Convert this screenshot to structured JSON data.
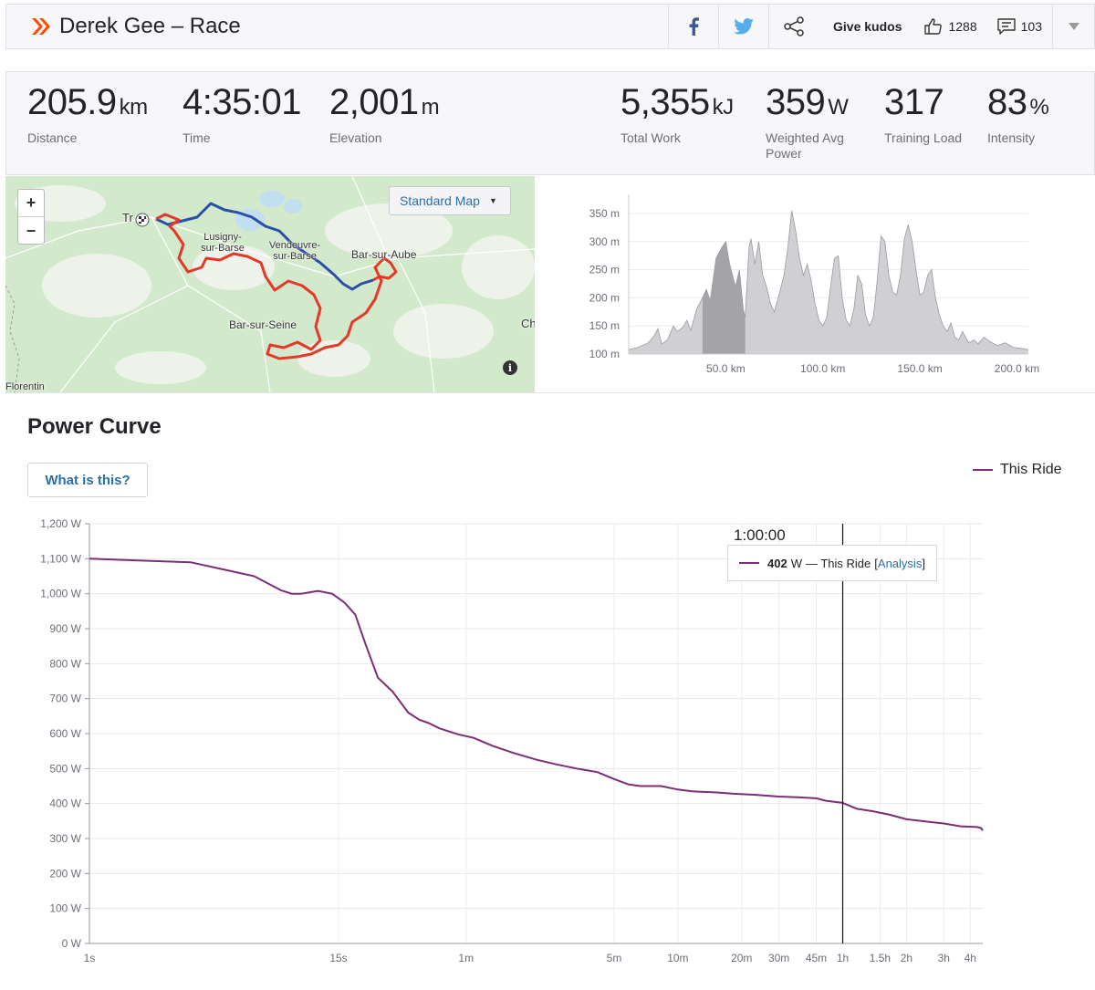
{
  "header": {
    "title": "Derek Gee – Race",
    "kudos_label": "Give kudos",
    "kudos_count": "1288",
    "comment_count": "103"
  },
  "stats": [
    {
      "value": "205.9",
      "unit": "km",
      "label": "Distance"
    },
    {
      "value": "4:35:01",
      "unit": "",
      "label": "Time"
    },
    {
      "value": "2,001",
      "unit": "m",
      "label": "Elevation"
    },
    {
      "value": "5,355",
      "unit": "kJ",
      "label": "Total Work"
    },
    {
      "value": "359",
      "unit": "W",
      "label": "Weighted Avg Power"
    },
    {
      "value": "317",
      "unit": "",
      "label": "Training Load"
    },
    {
      "value": "83",
      "unit": "%",
      "label": "Intensity"
    }
  ],
  "map": {
    "zoom_in": "+",
    "zoom_out": "−",
    "style_select": "Standard Map",
    "labels": [
      "Tr",
      "Lusigny-sur-Barse",
      "Vendeuvre-sur-Barse",
      "Bar-sur-Aube",
      "Bar-sur-Seine",
      "Ch",
      "Florentin"
    ],
    "info": "i"
  },
  "elevation_chart": {
    "type": "area",
    "y_ticks": [
      "350 m",
      "300 m",
      "250 m",
      "200 m",
      "150 m",
      "100 m"
    ],
    "x_ticks": [
      "50.0 km",
      "100.0 km",
      "150.0 km",
      "200.0 km"
    ],
    "ylim": [
      100,
      350
    ],
    "xlim": [
      0,
      205.9
    ],
    "highlight_range_km": [
      38,
      60
    ],
    "points": [
      [
        0,
        108
      ],
      [
        5,
        112
      ],
      [
        10,
        120
      ],
      [
        13,
        132
      ],
      [
        15,
        145
      ],
      [
        17,
        118
      ],
      [
        20,
        125
      ],
      [
        23,
        150
      ],
      [
        25,
        140
      ],
      [
        28,
        148
      ],
      [
        30,
        160
      ],
      [
        32,
        142
      ],
      [
        35,
        180
      ],
      [
        38,
        200
      ],
      [
        40,
        215
      ],
      [
        42,
        195
      ],
      [
        45,
        270
      ],
      [
        48,
        290
      ],
      [
        50,
        300
      ],
      [
        52,
        260
      ],
      [
        55,
        220
      ],
      [
        57,
        250
      ],
      [
        59,
        180
      ],
      [
        60,
        165
      ],
      [
        62,
        290
      ],
      [
        63,
        305
      ],
      [
        65,
        260
      ],
      [
        67,
        300
      ],
      [
        69,
        240
      ],
      [
        71,
        220
      ],
      [
        73,
        190
      ],
      [
        75,
        175
      ],
      [
        77,
        200
      ],
      [
        80,
        240
      ],
      [
        82,
        290
      ],
      [
        84,
        355
      ],
      [
        86,
        320
      ],
      [
        88,
        270
      ],
      [
        90,
        240
      ],
      [
        92,
        260
      ],
      [
        94,
        230
      ],
      [
        96,
        190
      ],
      [
        98,
        160
      ],
      [
        100,
        150
      ],
      [
        102,
        165
      ],
      [
        104,
        220
      ],
      [
        106,
        270
      ],
      [
        108,
        275
      ],
      [
        110,
        200
      ],
      [
        112,
        160
      ],
      [
        114,
        150
      ],
      [
        116,
        180
      ],
      [
        118,
        240
      ],
      [
        120,
        225
      ],
      [
        122,
        170
      ],
      [
        124,
        150
      ],
      [
        126,
        165
      ],
      [
        128,
        230
      ],
      [
        130,
        310
      ],
      [
        132,
        300
      ],
      [
        134,
        240
      ],
      [
        136,
        210
      ],
      [
        138,
        205
      ],
      [
        140,
        240
      ],
      [
        142,
        305
      ],
      [
        144,
        330
      ],
      [
        146,
        300
      ],
      [
        148,
        250
      ],
      [
        150,
        205
      ],
      [
        152,
        210
      ],
      [
        154,
        240
      ],
      [
        156,
        250
      ],
      [
        158,
        200
      ],
      [
        160,
        170
      ],
      [
        162,
        150
      ],
      [
        164,
        140
      ],
      [
        166,
        155
      ],
      [
        168,
        130
      ],
      [
        170,
        125
      ],
      [
        172,
        140
      ],
      [
        175,
        120
      ],
      [
        178,
        125
      ],
      [
        180,
        118
      ],
      [
        183,
        130
      ],
      [
        186,
        122
      ],
      [
        190,
        115
      ],
      [
        194,
        120
      ],
      [
        198,
        112
      ],
      [
        202,
        110
      ],
      [
        205.9,
        108
      ]
    ]
  },
  "power_curve": {
    "title": "Power Curve",
    "what_button": "What is this?",
    "legend": "This Ride",
    "cursor_time": "1:00:00",
    "tooltip_value": "402",
    "tooltip_unit": "W",
    "tooltip_series": "— This Ride",
    "tooltip_link": "Analysis",
    "chart_data": {
      "type": "line",
      "series_name": "This Ride",
      "y_ticks": [
        "1,200 W",
        "1,100 W",
        "1,000 W",
        "900 W",
        "800 W",
        "700 W",
        "600 W",
        "500 W",
        "400 W",
        "300 W",
        "200 W",
        "100 W",
        "0 W"
      ],
      "ylim": [
        0,
        1200
      ],
      "x_ticks": [
        {
          "label": "1s",
          "sec": 1
        },
        {
          "label": "15s",
          "sec": 15
        },
        {
          "label": "1m",
          "sec": 60
        },
        {
          "label": "5m",
          "sec": 300
        },
        {
          "label": "10m",
          "sec": 600
        },
        {
          "label": "20m",
          "sec": 1200
        },
        {
          "label": "30m",
          "sec": 1800
        },
        {
          "label": "45m",
          "sec": 2700
        },
        {
          "label": "1h",
          "sec": 3600
        },
        {
          "label": "1.5h",
          "sec": 5400
        },
        {
          "label": "2h",
          "sec": 7200
        },
        {
          "label": "3h",
          "sec": 10800
        },
        {
          "label": "4h",
          "sec": 14400
        }
      ],
      "xlim_sec": [
        1,
        16501
      ],
      "cursor_sec": 3600,
      "points": [
        [
          1,
          1100
        ],
        [
          3,
          1090
        ],
        [
          6,
          1050
        ],
        [
          8,
          1010
        ],
        [
          9,
          1000
        ],
        [
          10,
          1000
        ],
        [
          12,
          1008
        ],
        [
          14,
          1000
        ],
        [
          16,
          975
        ],
        [
          18,
          940
        ],
        [
          20,
          860
        ],
        [
          23,
          760
        ],
        [
          27,
          720
        ],
        [
          32,
          660
        ],
        [
          36,
          640
        ],
        [
          40,
          630
        ],
        [
          45,
          615
        ],
        [
          55,
          598
        ],
        [
          65,
          588
        ],
        [
          80,
          565
        ],
        [
          100,
          545
        ],
        [
          130,
          525
        ],
        [
          160,
          512
        ],
        [
          200,
          500
        ],
        [
          250,
          490
        ],
        [
          300,
          470
        ],
        [
          350,
          455
        ],
        [
          400,
          450
        ],
        [
          500,
          450
        ],
        [
          600,
          440
        ],
        [
          700,
          435
        ],
        [
          900,
          432
        ],
        [
          1100,
          428
        ],
        [
          1400,
          425
        ],
        [
          1800,
          420
        ],
        [
          2200,
          418
        ],
        [
          2700,
          415
        ],
        [
          3000,
          408
        ],
        [
          3600,
          402
        ],
        [
          4200,
          385
        ],
        [
          5000,
          378
        ],
        [
          6000,
          368
        ],
        [
          7200,
          355
        ],
        [
          8500,
          350
        ],
        [
          10800,
          343
        ],
        [
          13000,
          335
        ],
        [
          15500,
          333
        ],
        [
          16200,
          330
        ],
        [
          16500,
          323
        ]
      ]
    }
  }
}
